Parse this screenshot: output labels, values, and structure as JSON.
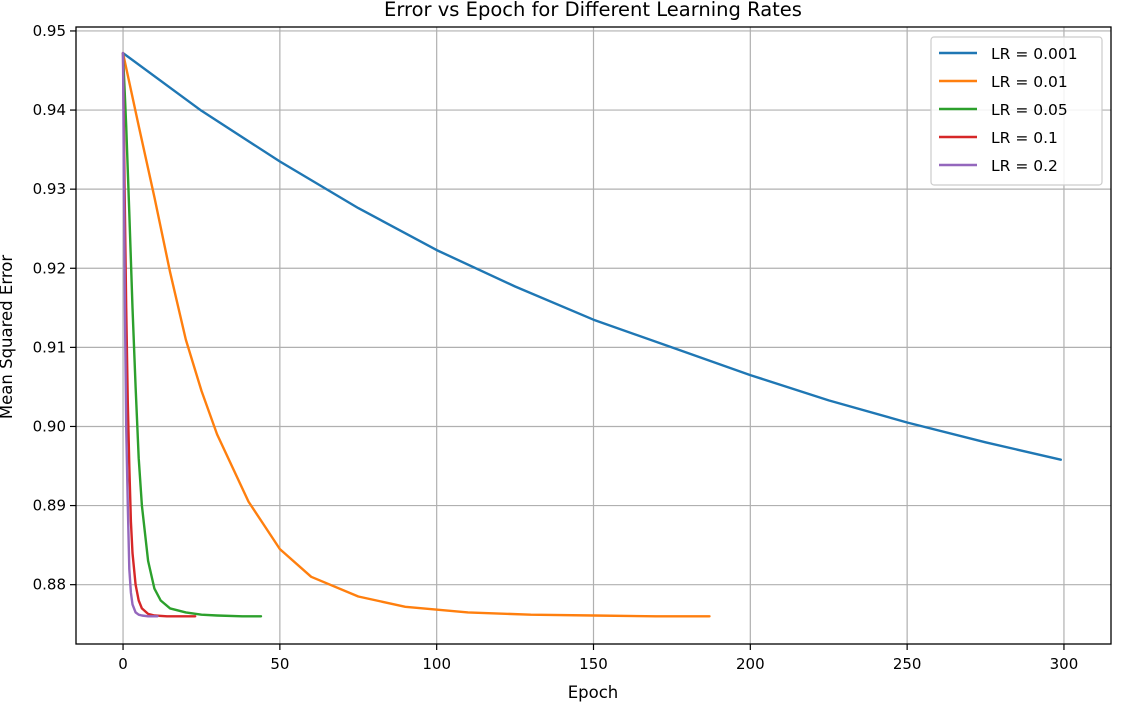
{
  "chart_data": {
    "type": "line",
    "title": "Error vs Epoch for Different Learning Rates",
    "xlabel": "Epoch",
    "ylabel": "Mean Squared Error",
    "xlim": [
      -15,
      315
    ],
    "ylim": [
      0.8725,
      0.9505
    ],
    "xticks": [
      0,
      50,
      100,
      150,
      200,
      250,
      300
    ],
    "yticks": [
      0.88,
      0.89,
      0.9,
      0.91,
      0.92,
      0.93,
      0.94,
      0.95
    ],
    "xtick_labels": [
      "0",
      "50",
      "100",
      "150",
      "200",
      "250",
      "300"
    ],
    "ytick_labels": [
      "0.88",
      "0.89",
      "0.90",
      "0.91",
      "0.92",
      "0.93",
      "0.94",
      "0.95"
    ],
    "grid": true,
    "legend_position": "top-right",
    "series": [
      {
        "name": "LR = 0.001",
        "color": "#1f77b4",
        "x": [
          0,
          25,
          50,
          75,
          100,
          125,
          150,
          175,
          200,
          225,
          250,
          275,
          299
        ],
        "y": [
          0.9472,
          0.9399,
          0.9335,
          0.9276,
          0.9223,
          0.9177,
          0.9135,
          0.91,
          0.9065,
          0.9033,
          0.9005,
          0.898,
          0.8958
        ]
      },
      {
        "name": "LR = 0.01",
        "color": "#ff7f0e",
        "x": [
          0,
          5,
          10,
          15,
          20,
          25,
          30,
          40,
          50,
          60,
          75,
          90,
          110,
          130,
          150,
          170,
          187
        ],
        "y": [
          0.9472,
          0.938,
          0.929,
          0.9195,
          0.911,
          0.9045,
          0.899,
          0.8905,
          0.8845,
          0.881,
          0.8785,
          0.8772,
          0.8765,
          0.8762,
          0.8761,
          0.876,
          0.876
        ]
      },
      {
        "name": "LR = 0.05",
        "color": "#2ca02c",
        "x": [
          0,
          1,
          2,
          3,
          4,
          5,
          6,
          8,
          10,
          12,
          15,
          20,
          25,
          30,
          38,
          44
        ],
        "y": [
          0.9472,
          0.938,
          0.927,
          0.915,
          0.905,
          0.896,
          0.89,
          0.883,
          0.8795,
          0.878,
          0.877,
          0.8765,
          0.8762,
          0.8761,
          0.876,
          0.876
        ]
      },
      {
        "name": "LR = 0.1",
        "color": "#d62728",
        "x": [
          0,
          0.5,
          1,
          1.5,
          2,
          2.5,
          3,
          4,
          5,
          6,
          8,
          10,
          14,
          18,
          23
        ],
        "y": [
          0.9472,
          0.93,
          0.915,
          0.903,
          0.895,
          0.888,
          0.884,
          0.88,
          0.878,
          0.877,
          0.8763,
          0.8761,
          0.876,
          0.876,
          0.876
        ]
      },
      {
        "name": "LR = 0.2",
        "color": "#9467bd",
        "x": [
          0,
          0.3,
          0.6,
          1,
          1.5,
          2,
          2.5,
          3,
          4,
          5,
          6,
          8,
          11
        ],
        "y": [
          0.9472,
          0.93,
          0.915,
          0.9,
          0.89,
          0.882,
          0.879,
          0.8775,
          0.8765,
          0.8762,
          0.8761,
          0.876,
          0.876
        ]
      }
    ]
  }
}
